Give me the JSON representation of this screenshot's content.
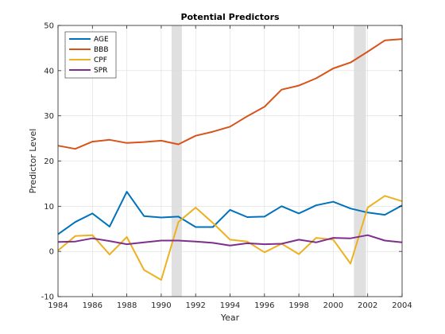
{
  "chart_data": {
    "type": "line",
    "title": "Potential Predictors",
    "xlabel": "Year",
    "ylabel": "Predictor Level",
    "xlim": [
      1984,
      2004
    ],
    "ylim": [
      -10,
      50
    ],
    "xticks": [
      1984,
      1986,
      1988,
      1990,
      1992,
      1994,
      1996,
      1998,
      2000,
      2002,
      2004
    ],
    "yticks": [
      -10,
      0,
      10,
      20,
      30,
      40,
      50
    ],
    "grid": true,
    "legend_position": "top-left",
    "shaded_regions": [
      [
        1990.6,
        1991.2
      ],
      [
        2001.2,
        2001.9
      ]
    ],
    "x": [
      1984,
      1985,
      1986,
      1987,
      1988,
      1989,
      1990,
      1991,
      1992,
      1993,
      1994,
      1995,
      1996,
      1997,
      1998,
      1999,
      2000,
      2001,
      2002,
      2003,
      2004
    ],
    "series": [
      {
        "name": "AGE",
        "color": "#0072bd",
        "values": [
          3.8,
          6.5,
          8.4,
          5.5,
          13.2,
          7.8,
          7.5,
          7.7,
          5.4,
          5.4,
          9.2,
          7.6,
          7.7,
          10.0,
          8.4,
          10.2,
          11.0,
          9.5,
          8.6,
          8.1,
          10.2
        ]
      },
      {
        "name": "BBB",
        "color": "#d95319",
        "values": [
          23.4,
          22.7,
          24.3,
          24.7,
          24.0,
          24.2,
          24.5,
          23.7,
          25.6,
          26.5,
          27.6,
          29.9,
          32.0,
          35.8,
          36.7,
          38.3,
          40.5,
          41.8,
          44.2,
          46.7,
          47.0
        ]
      },
      {
        "name": "CPF",
        "color": "#edb120",
        "values": [
          0.2,
          3.4,
          3.6,
          -0.7,
          3.2,
          -4.1,
          -6.3,
          6.5,
          9.7,
          6.3,
          2.6,
          2.2,
          -0.2,
          1.7,
          -0.6,
          3.0,
          2.6,
          -2.7,
          9.7,
          12.3,
          11.1
        ]
      },
      {
        "name": "SPR",
        "color": "#7e2f8e",
        "values": [
          2.1,
          2.2,
          2.9,
          2.3,
          1.6,
          2.0,
          2.4,
          2.4,
          2.2,
          1.9,
          1.3,
          1.8,
          1.6,
          1.7,
          2.6,
          2.0,
          3.0,
          2.9,
          3.6,
          2.4,
          2.0
        ]
      }
    ]
  }
}
